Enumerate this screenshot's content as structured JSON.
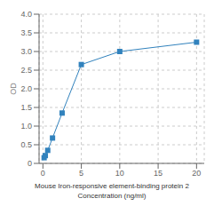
{
  "chart_data": {
    "type": "line",
    "xlabel": "Mouse Iron-responsive element-binding protein 2\nConcentration (ng/ml)",
    "ylabel": "OD",
    "x": [
      0.156,
      0.313,
      0.625,
      1.25,
      2.5,
      5,
      10,
      20
    ],
    "values": [
      0.152,
      0.21,
      0.35,
      0.68,
      1.35,
      2.65,
      3.0,
      3.25
    ],
    "xlim": [
      -0.5,
      21
    ],
    "ylim": [
      0,
      4
    ],
    "xticks": [
      0,
      5,
      10,
      15,
      20
    ],
    "yticks": [
      0,
      0.5,
      {
        "value": 1,
        "label": "1.0"
      },
      1.5,
      {
        "value": 2,
        "label": "2.0"
      },
      2.5,
      {
        "value": 3,
        "label": "3.0"
      },
      3.5,
      {
        "value": 4,
        "label": "4.0"
      }
    ],
    "grid": true,
    "marker": "square"
  }
}
